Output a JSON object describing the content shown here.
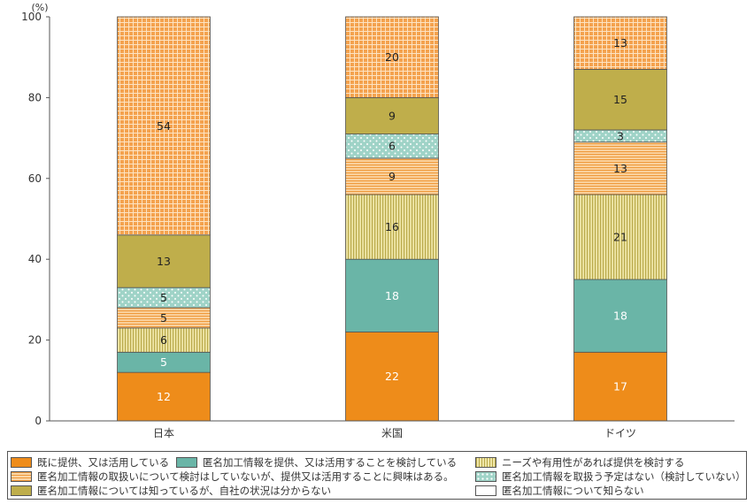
{
  "chart_data": {
    "type": "bar",
    "stacked": true,
    "unit": "(%)",
    "ylim": [
      0,
      100
    ],
    "yticks": [
      0,
      20,
      40,
      60,
      80,
      100
    ],
    "categories": [
      "日本",
      "米国",
      "ドイツ"
    ],
    "series": [
      {
        "name": "既に提供、又は活用している",
        "values": [
          12,
          22,
          17
        ],
        "color": "#ee8c1a",
        "pattern": "solid"
      },
      {
        "name": "匿名加工情報を提供、又は活用することを検討している",
        "values": [
          5,
          18,
          18
        ],
        "color": "#6ab5a7",
        "pattern": "solid"
      },
      {
        "name": "ニーズや有用性があれば提供を検討する",
        "values": [
          6,
          16,
          21
        ],
        "color": "#d9cf7a",
        "pattern": "vlines"
      },
      {
        "name": "匿名加工情報の取扱いについて検討はしていないが、提供又は活用することに興味はある。",
        "values": [
          5,
          9,
          13
        ],
        "color": "#f6b56d",
        "pattern": "hlines"
      },
      {
        "name": "匿名加工情報を取扱う予定はない（検討していない）",
        "values": [
          5,
          6,
          3
        ],
        "color": "#a8d6cc",
        "pattern": "dots"
      },
      {
        "name": "匿名加工情報については知っているが、自社の状況は分からない",
        "values": [
          13,
          9,
          15
        ],
        "color": "#bfae4b",
        "pattern": "solid"
      },
      {
        "name": "匿名加工情報について知らない",
        "values": [
          54,
          20,
          13
        ],
        "color": "#f6a95a",
        "pattern": "grid"
      }
    ]
  }
}
